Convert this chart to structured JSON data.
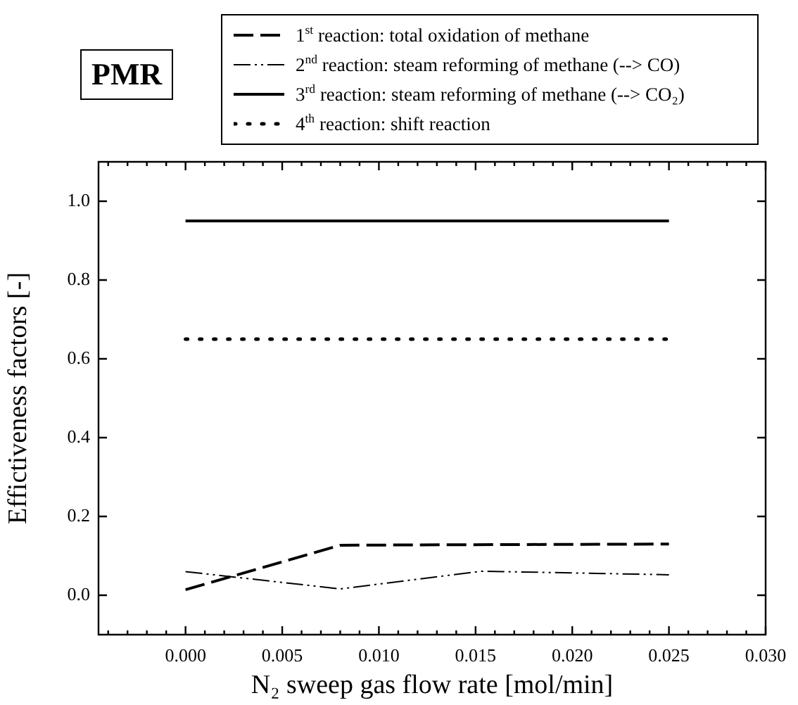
{
  "chart_data": {
    "type": "line",
    "ylabel": "Effictiveness factors [-]",
    "xlabel": "N₂ sweep gas flow rate [mol/min]",
    "annotations": [
      "PMR"
    ],
    "xlim": [
      -0.0045,
      0.03
    ],
    "ylim": [
      -0.1,
      1.1
    ],
    "xticks": [
      {
        "value": -0.004,
        "label": null
      },
      {
        "value": -0.003,
        "label": null
      },
      {
        "value": -0.002,
        "label": null
      },
      {
        "value": -0.001,
        "label": null
      },
      {
        "value": 0,
        "label": "0.000"
      },
      {
        "value": 0.001,
        "label": null
      },
      {
        "value": 0.002,
        "label": null
      },
      {
        "value": 0.003,
        "label": null
      },
      {
        "value": 0.004,
        "label": null
      },
      {
        "value": 0.005,
        "label": "0.005"
      },
      {
        "value": 0.006,
        "label": null
      },
      {
        "value": 0.007,
        "label": null
      },
      {
        "value": 0.008,
        "label": null
      },
      {
        "value": 0.009,
        "label": null
      },
      {
        "value": 0.01,
        "label": "0.010"
      },
      {
        "value": 0.011,
        "label": null
      },
      {
        "value": 0.012,
        "label": null
      },
      {
        "value": 0.013,
        "label": null
      },
      {
        "value": 0.014,
        "label": null
      },
      {
        "value": 0.015,
        "label": "0.015"
      },
      {
        "value": 0.016,
        "label": null
      },
      {
        "value": 0.017,
        "label": null
      },
      {
        "value": 0.018,
        "label": null
      },
      {
        "value": 0.019,
        "label": null
      },
      {
        "value": 0.02,
        "label": "0.020"
      },
      {
        "value": 0.021,
        "label": null
      },
      {
        "value": 0.022,
        "label": null
      },
      {
        "value": 0.023,
        "label": null
      },
      {
        "value": 0.024,
        "label": null
      },
      {
        "value": 0.025,
        "label": "0.025"
      },
      {
        "value": 0.026,
        "label": null
      },
      {
        "value": 0.027,
        "label": null
      },
      {
        "value": 0.028,
        "label": null
      },
      {
        "value": 0.029,
        "label": null
      },
      {
        "value": 0.03,
        "label": "0.030"
      }
    ],
    "yticks": [
      {
        "value": 0,
        "label": "0.0"
      },
      {
        "value": 0.2,
        "label": "0.2"
      },
      {
        "value": 0.4,
        "label": "0.4"
      },
      {
        "value": 0.6,
        "label": "0.6"
      },
      {
        "value": 0.8,
        "label": "0.8"
      },
      {
        "value": 1,
        "label": "1.0"
      }
    ],
    "grid": false,
    "legend": "top right",
    "marker": "none",
    "series": [
      {
        "name": "1$^{st}$ reaction: total oxidation of methane",
        "color": "#000000",
        "line_style": "dashed",
        "x": [
          0,
          0.008,
          0.025
        ],
        "values": [
          0.014,
          0.127,
          0.13
        ]
      },
      {
        "name": "2$^{nd}$ reaction: steam reforming of methane (--> CO)",
        "color": "#000000",
        "line_style": "dashdotdot",
        "x": [
          0,
          0.008,
          0.0153,
          0.025
        ],
        "values": [
          0.06,
          0.016,
          0.061,
          0.052
        ]
      },
      {
        "name": "3$^{rd}$ reaction: steam reforming of methane (--> CO₂)",
        "color": "#000000",
        "line_style": "solid",
        "x": [
          0,
          0.025
        ],
        "values": [
          0.95,
          0.95
        ]
      },
      {
        "name": "4$^{th}$ reaction: shift reaction",
        "color": "#000000",
        "line_style": "dotted",
        "x": [
          0,
          0.025
        ],
        "values": [
          0.65,
          0.65
        ]
      }
    ]
  }
}
